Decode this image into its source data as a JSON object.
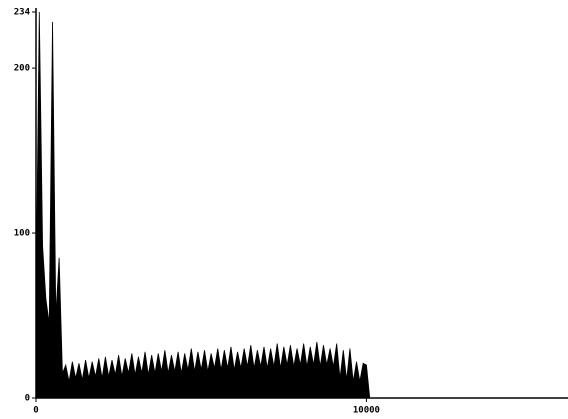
{
  "chart_data": {
    "type": "area",
    "color": "#000000",
    "x": [
      0,
      100,
      200,
      300,
      400,
      500,
      600,
      700,
      800,
      900,
      1000,
      1100,
      1200,
      1300,
      1400,
      1500,
      1600,
      1700,
      1800,
      1900,
      2000,
      2100,
      2200,
      2300,
      2400,
      2500,
      2600,
      2700,
      2800,
      2900,
      3000,
      3100,
      3200,
      3300,
      3400,
      3500,
      3600,
      3700,
      3800,
      3900,
      4000,
      4100,
      4200,
      4300,
      4400,
      4500,
      4600,
      4700,
      4800,
      4900,
      5000,
      5100,
      5200,
      5300,
      5400,
      5500,
      5600,
      5700,
      5800,
      5900,
      6000,
      6100,
      6200,
      6300,
      6400,
      6500,
      6600,
      6700,
      6800,
      6900,
      7000,
      7100,
      7200,
      7300,
      7400,
      7500,
      7600,
      7700,
      7800,
      7900,
      8000,
      8100,
      8200,
      8300,
      8400,
      8500,
      8600,
      8700,
      8800,
      8900,
      9000,
      9100,
      9200,
      9300,
      9400,
      9500,
      9600,
      9700,
      9800,
      9900,
      10000,
      10100,
      16100
    ],
    "values": [
      60,
      234,
      92,
      60,
      45,
      228,
      50,
      85,
      15,
      20,
      10,
      22,
      12,
      21,
      11,
      23,
      12,
      22,
      13,
      24,
      12,
      25,
      13,
      23,
      14,
      26,
      13,
      24,
      15,
      27,
      14,
      25,
      15,
      28,
      14,
      26,
      15,
      27,
      16,
      29,
      15,
      26,
      16,
      28,
      15,
      27,
      17,
      30,
      16,
      28,
      17,
      29,
      16,
      27,
      18,
      30,
      17,
      29,
      18,
      31,
      17,
      28,
      18,
      30,
      19,
      32,
      18,
      29,
      19,
      31,
      18,
      30,
      19,
      33,
      18,
      31,
      20,
      32,
      19,
      30,
      20,
      33,
      19,
      31,
      20,
      34,
      19,
      32,
      20,
      30,
      19,
      33,
      12,
      29,
      11,
      30,
      10,
      22,
      10,
      21,
      20,
      0,
      0
    ],
    "xlim": [
      0,
      16100
    ],
    "ylim": [
      0,
      234
    ],
    "xticks": [
      0,
      10000
    ],
    "yticks": [
      0,
      100,
      200,
      234
    ]
  }
}
